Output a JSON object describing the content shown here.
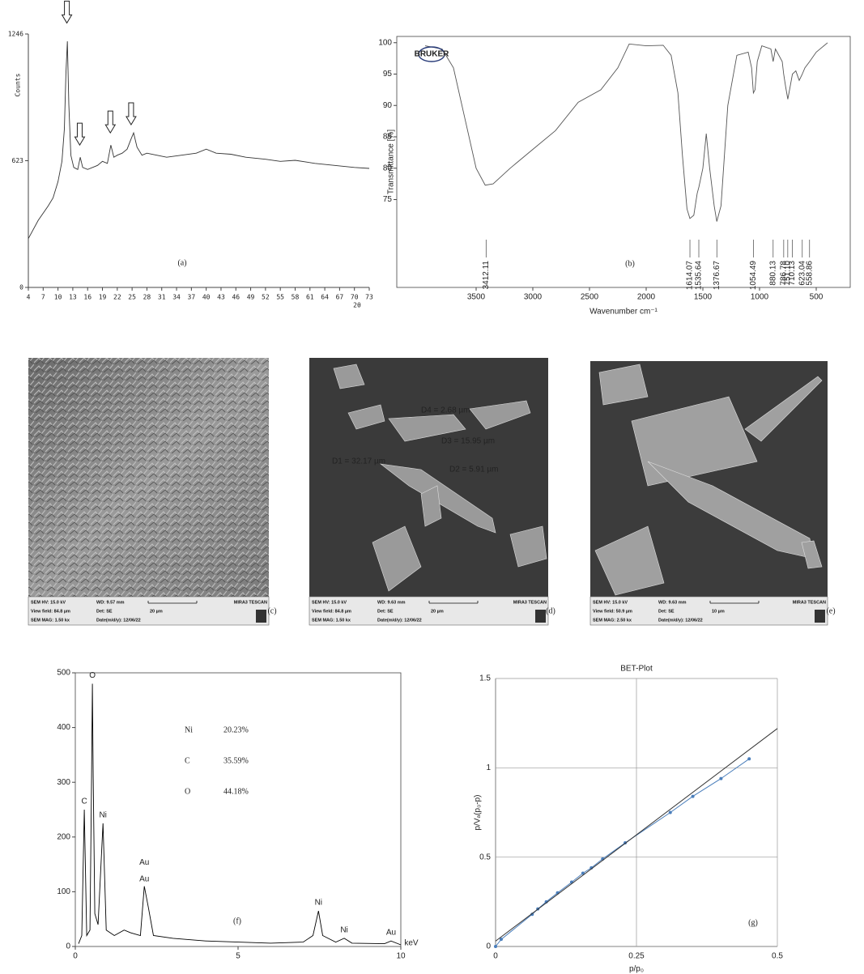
{
  "chart_data": [
    {
      "type": "line",
      "panel_label": "(a)",
      "y_label": "Counts",
      "x_label": "2θ",
      "xlim": [
        4,
        73
      ],
      "ylim": [
        0,
        1246
      ],
      "xticks": [
        4,
        7,
        10,
        13,
        16,
        19,
        22,
        25,
        28,
        31,
        34,
        37,
        40,
        43,
        46,
        49,
        52,
        55,
        58,
        61,
        64,
        67,
        70,
        73
      ],
      "yticks": [
        0,
        623,
        1246
      ],
      "color": "#333333",
      "x": [
        4,
        6,
        8,
        9,
        10,
        10.8,
        11.3,
        11.6,
        11.9,
        12.2,
        12.6,
        13.2,
        14,
        14.5,
        15,
        16,
        18,
        19,
        20,
        20.7,
        21.3,
        22,
        23,
        24,
        24.8,
        25.3,
        26,
        27,
        28,
        30,
        32,
        35,
        38,
        40,
        42,
        45,
        48,
        52,
        55,
        58,
        62,
        66,
        70,
        73
      ],
      "values": [
        240,
        330,
        400,
        440,
        520,
        620,
        780,
        1050,
        1210,
        900,
        650,
        590,
        580,
        640,
        590,
        580,
        600,
        620,
        610,
        700,
        640,
        650,
        660,
        680,
        730,
        760,
        690,
        650,
        660,
        650,
        640,
        650,
        660,
        680,
        660,
        655,
        640,
        630,
        620,
        625,
        610,
        600,
        590,
        585
      ],
      "arrows": [
        {
          "x": 11.8,
          "y": 1300
        },
        {
          "x": 14.4,
          "y": 700
        },
        {
          "x": 20.6,
          "y": 760
        },
        {
          "x": 24.8,
          "y": 800
        }
      ]
    },
    {
      "type": "line",
      "panel_label": "(b)",
      "logo": "BRUKER",
      "y_label": "Transmittance [%]",
      "x_label": "Wavenumber cm⁻¹",
      "xlim": [
        4200,
        200
      ],
      "ylim": [
        61,
        101
      ],
      "xticks": [
        3500,
        3000,
        2500,
        2000,
        1500,
        1000,
        500
      ],
      "yticks": [
        75,
        80,
        85,
        90,
        95,
        100
      ],
      "color": "#555555",
      "x": [
        3950,
        3800,
        3700,
        3600,
        3500,
        3420,
        3350,
        3200,
        3000,
        2800,
        2600,
        2400,
        2250,
        2150,
        2000,
        1850,
        1780,
        1720,
        1680,
        1640,
        1614,
        1580,
        1550,
        1535,
        1500,
        1470,
        1440,
        1400,
        1377,
        1340,
        1280,
        1200,
        1100,
        1070,
        1054,
        1040,
        1020,
        980,
        900,
        880,
        860,
        800,
        787,
        770,
        751,
        730,
        710,
        680,
        650,
        623,
        600,
        558,
        500,
        400
      ],
      "values": [
        99.5,
        99,
        96,
        88,
        80,
        77.3,
        77.5,
        80,
        83,
        86,
        90.5,
        92.5,
        96,
        99.8,
        99.5,
        99.6,
        98,
        92,
        82,
        73.5,
        72,
        72.5,
        76,
        77,
        80,
        85.5,
        80,
        74,
        71.5,
        74,
        90,
        98,
        98.5,
        96,
        92,
        92.5,
        97,
        99.5,
        99,
        97,
        99,
        97,
        95,
        93,
        91,
        93,
        95,
        95.5,
        94,
        95,
        96,
        97,
        98.5,
        100
      ],
      "peak_labels": [
        {
          "value": 3412.11,
          "label": "3412.11"
        },
        {
          "value": 1614.07,
          "label": "1614.07"
        },
        {
          "value": 1535.64,
          "label": "1535.64"
        },
        {
          "value": 1376.67,
          "label": "1376.67"
        },
        {
          "value": 1054.49,
          "label": "1054.49"
        },
        {
          "value": 880.13,
          "label": "880.13"
        },
        {
          "value": 786.78,
          "label": "786.78"
        },
        {
          "value": 751.1,
          "label": "751.10"
        },
        {
          "value": 710.13,
          "label": "710.13"
        },
        {
          "value": 623.04,
          "label": "623.04"
        },
        {
          "value": 558.86,
          "label": "558.86"
        }
      ]
    },
    {
      "type": "line",
      "panel_label": "(f)",
      "x_label": "keV",
      "xlim": [
        0,
        10
      ],
      "ylim": [
        0,
        500
      ],
      "xticks": [
        0,
        5,
        10
      ],
      "yticks": [
        0,
        100,
        200,
        300,
        400,
        500
      ],
      "color": "#000000",
      "x": [
        0.1,
        0.2,
        0.277,
        0.35,
        0.45,
        0.5,
        0.525,
        0.55,
        0.6,
        0.7,
        0.85,
        0.95,
        1.2,
        1.5,
        1.7,
        2.0,
        2.12,
        2.25,
        2.4,
        3,
        4,
        5,
        6,
        7,
        7.3,
        7.47,
        7.6,
        8.0,
        8.26,
        8.5,
        9.5,
        9.7,
        10
      ],
      "values": [
        5,
        20,
        250,
        20,
        30,
        310,
        480,
        310,
        60,
        40,
        225,
        30,
        20,
        30,
        25,
        20,
        110,
        70,
        20,
        15,
        10,
        8,
        6,
        8,
        20,
        65,
        20,
        8,
        15,
        6,
        5,
        10,
        3
      ],
      "peak_labels": [
        {
          "text": "C",
          "x": 0.277,
          "y": 265
        },
        {
          "text": "O",
          "x": 0.525,
          "y": 495
        },
        {
          "text": "Ni",
          "x": 0.85,
          "y": 240
        },
        {
          "text": "Au",
          "x": 2.12,
          "y": 123
        },
        {
          "text": "Au",
          "x": 2.12,
          "y": 153
        },
        {
          "text": "Ni",
          "x": 7.47,
          "y": 80
        },
        {
          "text": "Ni",
          "x": 8.26,
          "y": 30
        },
        {
          "text": "Au",
          "x": 9.7,
          "y": 25
        }
      ],
      "composition": [
        {
          "element": "Ni",
          "value": "20.23%"
        },
        {
          "element": "C",
          "value": "35.59%"
        },
        {
          "element": "O",
          "value": "44.18%"
        }
      ]
    },
    {
      "type": "scatter",
      "panel_label": "(g)",
      "title": "BET-Plot",
      "y_label": "p/Vₐ(p₀-p)",
      "x_label": "p/p₀",
      "xlim": [
        0,
        0.5
      ],
      "ylim": [
        0,
        1.5
      ],
      "xticks": [
        0,
        0.25,
        0.5
      ],
      "yticks": [
        0,
        0.5,
        1,
        1.5
      ],
      "grid": true,
      "color": "#4a7ebb",
      "x": [
        0,
        0.01,
        0.065,
        0.075,
        0.09,
        0.11,
        0.135,
        0.155,
        0.17,
        0.19,
        0.23,
        0.31,
        0.35,
        0.4,
        0.45
      ],
      "values": [
        0,
        0.04,
        0.18,
        0.21,
        0.25,
        0.3,
        0.36,
        0.41,
        0.44,
        0.49,
        0.58,
        0.75,
        0.84,
        0.94,
        1.05
      ],
      "fit": {
        "x": [
          0,
          0.5
        ],
        "values": [
          0.03,
          1.22
        ],
        "color": "#333333"
      }
    }
  ],
  "images": [
    {
      "panel_label": "(c)",
      "hv": "SEM HV: 15.0 kV",
      "wd": "WD: 9.57 mm",
      "view_field": "View field: 84.8 µm",
      "det": "Det: SE",
      "mag": "SEM MAG: 1.50 kx",
      "date": "Date(m/d/y): 12/06/22",
      "scale": "20 µm",
      "brand": "MIRA3 TESCAN"
    },
    {
      "panel_label": "(d)",
      "hv": "SEM HV: 15.0 kV",
      "wd": "WD: 9.63 mm",
      "view_field": "View field: 84.8 µm",
      "det": "Det: SE",
      "mag": "SEM MAG: 1.50 kx",
      "date": "Date(m/d/y): 12/06/22",
      "scale": "20 µm",
      "brand": "MIRA3 TESCAN",
      "measurements": [
        "D4 = 2.68 µm",
        "D3 = 15.95 µm",
        "D1 = 32.17 µm",
        "D2 = 5.91 µm"
      ]
    },
    {
      "panel_label": "(e)",
      "hv": "SEM HV: 15.0 kV",
      "wd": "WD: 9.63 mm",
      "view_field": "View field: 50.9 µm",
      "det": "Det: SE",
      "mag": "SEM MAG: 2.50 kx",
      "date": "Date(m/d/y): 12/06/22",
      "scale": "10 µm",
      "brand": "MIRA3 TESCAN"
    }
  ]
}
